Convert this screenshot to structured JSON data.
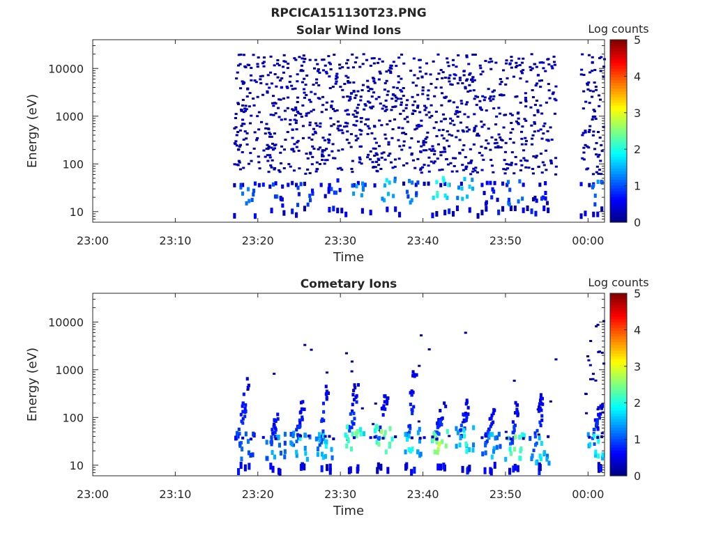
{
  "figure_title": "RPCICA151130T23.PNG",
  "chart_data": [
    {
      "type": "heatmap",
      "title": "Solar Wind Ions",
      "xlabel": "Time",
      "ylabel": "Energy (eV)",
      "xlim": [
        "23:00",
        "00:02"
      ],
      "xtick_labels": [
        "23:00",
        "23:10",
        "23:20",
        "23:30",
        "23:40",
        "23:50",
        "00:00"
      ],
      "yscale": "log",
      "ylim": [
        6,
        40000
      ],
      "ytick_labels": [
        "10",
        "100",
        "1000",
        "10000"
      ],
      "grid": false,
      "colorbar": {
        "label": "Log counts",
        "range": [
          0,
          5
        ],
        "tick_labels": [
          "0",
          "1",
          "2",
          "3",
          "4",
          "5"
        ],
        "colormap": "jet"
      },
      "data_time_ranges": [
        [
          "23:17",
          "23:56"
        ],
        [
          "23:59",
          "00:02"
        ]
      ],
      "sparse_background": {
        "energy_range": [
          60,
          20000
        ],
        "log_counts": 0.1
      },
      "hotspots": [
        {
          "time": "23:18.5",
          "energy": 22,
          "log_counts": 1.6
        },
        {
          "time": "23:22",
          "energy": 22,
          "log_counts": 1.3
        },
        {
          "time": "23:25.5",
          "energy": 22,
          "log_counts": 1.5
        },
        {
          "time": "23:29",
          "energy": 28,
          "log_counts": 1.2
        },
        {
          "time": "23:32",
          "energy": 30,
          "log_counts": 1.8
        },
        {
          "time": "23:35.5",
          "energy": 30,
          "log_counts": 2.0
        },
        {
          "time": "23:38.5",
          "energy": 25,
          "log_counts": 1.5
        },
        {
          "time": "23:42",
          "energy": 32,
          "log_counts": 2.5
        },
        {
          "time": "23:45",
          "energy": 32,
          "log_counts": 2.0
        },
        {
          "time": "23:48",
          "energy": 25,
          "log_counts": 1.0
        },
        {
          "time": "23:51",
          "energy": 25,
          "log_counts": 1.7
        },
        {
          "time": "23:54",
          "energy": 25,
          "log_counts": 1.0
        },
        {
          "time": "00:01",
          "energy": 25,
          "log_counts": 1.5
        }
      ]
    },
    {
      "type": "heatmap",
      "title": "Cometary Ions",
      "xlabel": "Time",
      "ylabel": "Energy (eV)",
      "xlim": [
        "23:00",
        "00:02"
      ],
      "xtick_labels": [
        "23:00",
        "23:10",
        "23:20",
        "23:30",
        "23:40",
        "23:50",
        "00:00"
      ],
      "yscale": "log",
      "ylim": [
        6,
        40000
      ],
      "ytick_labels": [
        "10",
        "100",
        "1000",
        "10000"
      ],
      "grid": false,
      "colorbar": {
        "label": "Log counts",
        "range": [
          0,
          5
        ],
        "tick_labels": [
          "0",
          "1",
          "2",
          "3",
          "4",
          "5"
        ],
        "colormap": "jet"
      },
      "data_time_ranges": [
        [
          "23:17.5",
          "23:56"
        ],
        [
          "23:59.5",
          "00:02"
        ]
      ],
      "dispersion_features": [
        {
          "time": "23:18.2",
          "peak_energy": 700,
          "core_energy": 25,
          "log_counts": 1.6
        },
        {
          "time": "23:22",
          "peak_energy": 150,
          "core_energy": 25,
          "log_counts": 1.8
        },
        {
          "time": "23:25",
          "peak_energy": 250,
          "core_energy": 25,
          "log_counts": 2.0
        },
        {
          "time": "23:28",
          "peak_energy": 600,
          "core_energy": 25,
          "log_counts": 2.0
        },
        {
          "time": "23:31.5",
          "peak_energy": 600,
          "core_energy": 35,
          "log_counts": 2.7
        },
        {
          "time": "23:35",
          "peak_energy": 300,
          "core_energy": 35,
          "log_counts": 2.8
        },
        {
          "time": "23:38.5",
          "peak_energy": 900,
          "core_energy": 30,
          "log_counts": 2.2
        },
        {
          "time": "23:42",
          "peak_energy": 200,
          "core_energy": 35,
          "log_counts": 3.0
        },
        {
          "time": "23:45",
          "peak_energy": 250,
          "core_energy": 35,
          "log_counts": 2.2
        },
        {
          "time": "23:48",
          "peak_energy": 150,
          "core_energy": 25,
          "log_counts": 1.8
        },
        {
          "time": "23:51",
          "peak_energy": 250,
          "core_energy": 25,
          "log_counts": 2.6
        },
        {
          "time": "23:54",
          "peak_energy": 300,
          "core_energy": 20,
          "log_counts": 2.0
        },
        {
          "time": "00:01",
          "peak_energy": 200,
          "core_energy": 25,
          "log_counts": 2.2
        }
      ]
    }
  ]
}
